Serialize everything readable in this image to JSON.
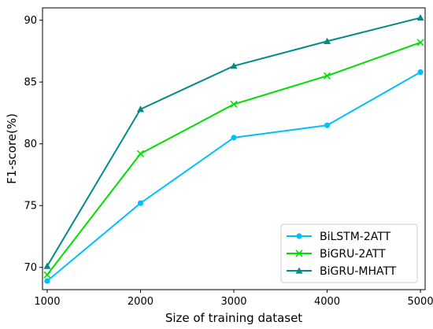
{
  "chart_data": {
    "type": "line",
    "xlabel": "Size of training dataset",
    "ylabel": "F1-score(%)",
    "x": [
      1000,
      2000,
      3000,
      4000,
      5000
    ],
    "x_ticks": [
      "1000",
      "2000",
      "3000",
      "4000",
      "5000"
    ],
    "y_ticks": [
      "70",
      "75",
      "80",
      "85",
      "90"
    ],
    "xlim": [
      950,
      5050
    ],
    "ylim": [
      68.2,
      91
    ],
    "grid": false,
    "legend_position": "bottom-right",
    "series": [
      {
        "name": "BiLSTM-2ATT",
        "color": "#00BFFF",
        "marker": "circle",
        "values": [
          68.9,
          75.2,
          80.5,
          81.5,
          85.8
        ]
      },
      {
        "name": "BiGRU-2ATT",
        "color": "#00DD00",
        "marker": "x",
        "values": [
          69.4,
          79.2,
          83.2,
          85.5,
          88.2
        ]
      },
      {
        "name": "BiGRU-MHATT",
        "color": "#008B8B",
        "marker": "triangle",
        "values": [
          70.1,
          82.8,
          86.3,
          88.3,
          90.2
        ]
      }
    ]
  }
}
